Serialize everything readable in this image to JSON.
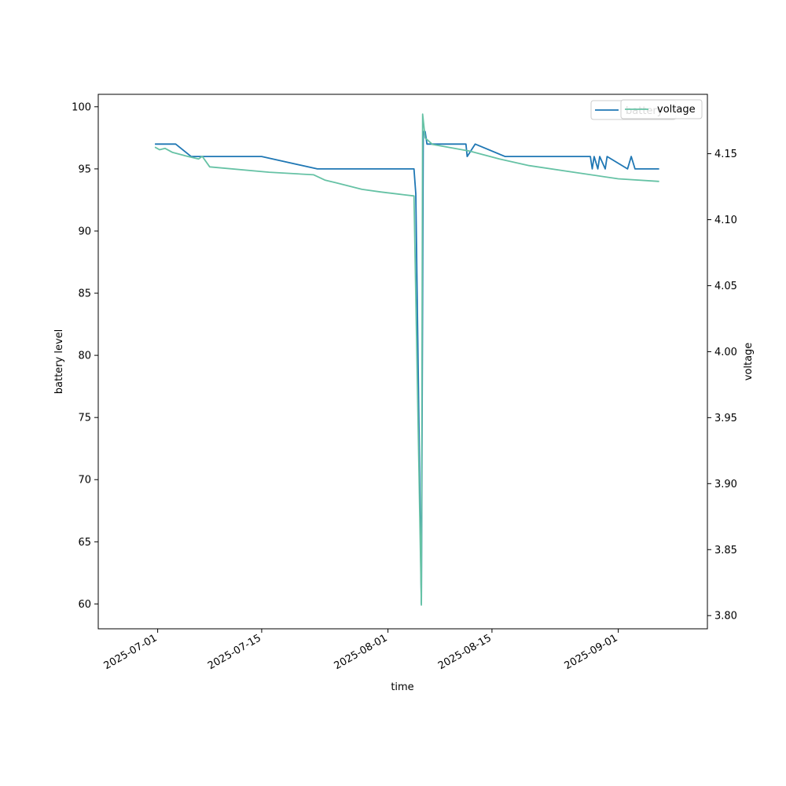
{
  "chart_data": {
    "type": "line",
    "title": "",
    "xlabel": "time",
    "ylabel": "battery level",
    "y2label": "voltage",
    "xlim": [
      "2025-06-23",
      "2025-09-13"
    ],
    "ylim": [
      58,
      101
    ],
    "y2lim": [
      3.79,
      4.195
    ],
    "x_ticks": [
      "2025-07-01",
      "2025-07-15",
      "2025-08-01",
      "2025-08-15",
      "2025-09-01"
    ],
    "y_ticks": [
      60,
      65,
      70,
      75,
      80,
      85,
      90,
      95,
      100
    ],
    "y2_ticks": [
      3.8,
      3.85,
      3.9,
      3.95,
      4.0,
      4.05,
      4.1,
      4.15
    ],
    "grid": false,
    "colors": {
      "battery": "#1f77b4",
      "voltage": "#66c2a5"
    },
    "series": [
      {
        "name": "battery",
        "axis": "left",
        "x": [
          "2025-06-30 15:00",
          "2025-07-03 10:00",
          "2025-07-05 12:00",
          "2025-07-15 00:00",
          "2025-07-22 12:00",
          "2025-08-04 12:00",
          "2025-08-04 18:00",
          "2025-08-05 12:00",
          "2025-08-05 18:00",
          "2025-08-06 00:00",
          "2025-08-06 06:00",
          "2025-08-11 12:00",
          "2025-08-11 16:00",
          "2025-08-12 18:00",
          "2025-08-16 18:00",
          "2025-08-28 06:00",
          "2025-08-28 12:00",
          "2025-08-28 18:00",
          "2025-08-29 06:00",
          "2025-08-29 12:00",
          "2025-08-30 06:00",
          "2025-08-30 12:00",
          "2025-09-02 06:00",
          "2025-09-02 18:00",
          "2025-09-03 06:00",
          "2025-09-06 12:00"
        ],
        "values": [
          97,
          97,
          96,
          96,
          95,
          95,
          93,
          60,
          98,
          98,
          97,
          97,
          96,
          97,
          96,
          96,
          95,
          96,
          95,
          96,
          95,
          96,
          95,
          96,
          95,
          95
        ]
      },
      {
        "name": "voltage",
        "axis": "right",
        "x": [
          "2025-06-30 15:00",
          "2025-07-01 06:00",
          "2025-07-02 00:00",
          "2025-07-03 00:00",
          "2025-07-05 00:00",
          "2025-07-06 12:00",
          "2025-07-07 00:00",
          "2025-07-08 00:00",
          "2025-07-16 00:00",
          "2025-07-22 00:00",
          "2025-07-23 12:00",
          "2025-07-25 00:00",
          "2025-07-28 12:00",
          "2025-07-31 00:00",
          "2025-08-03 00:00",
          "2025-08-04 12:00",
          "2025-08-05 12:00",
          "2025-08-05 16:00",
          "2025-08-06 00:00",
          "2025-08-07 00:00",
          "2025-08-12 00:00",
          "2025-08-16 00:00",
          "2025-08-20 00:00",
          "2025-08-26 00:00",
          "2025-09-01 00:00",
          "2025-09-06 12:00"
        ],
        "values": [
          4.155,
          4.153,
          4.154,
          4.151,
          4.148,
          4.146,
          4.148,
          4.14,
          4.136,
          4.134,
          4.13,
          4.128,
          4.123,
          4.121,
          4.119,
          4.118,
          3.808,
          4.18,
          4.162,
          4.157,
          4.152,
          4.146,
          4.141,
          4.136,
          4.131,
          4.129
        ]
      }
    ],
    "legend": {
      "placement": "top-right",
      "entries": [
        "battery",
        "voltage"
      ]
    }
  }
}
